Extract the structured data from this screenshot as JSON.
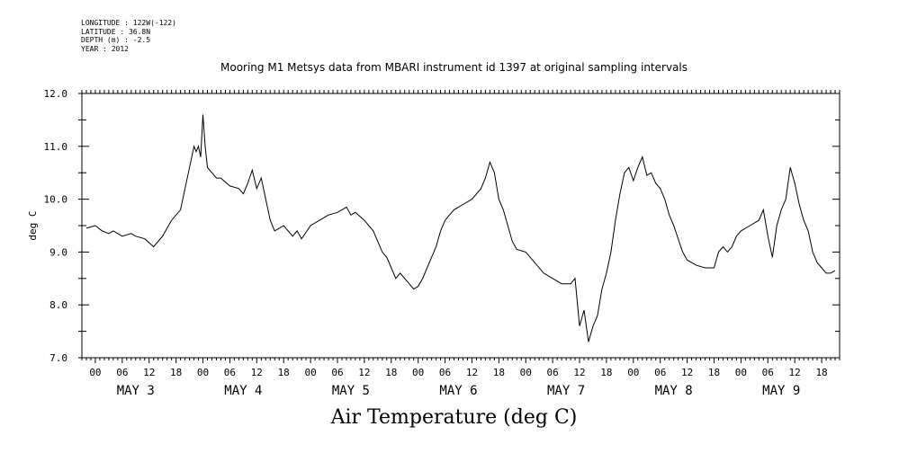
{
  "header": {
    "meta_lines": [
      "LONGITUDE : 122W(-122)",
      "LATITUDE : 36.8N",
      "DEPTH (m) : -2.5",
      "YEAR : 2012"
    ],
    "title": "Mooring M1 Metsys data from MBARI instrument id 1397 at original sampling intervals"
  },
  "footer_title": "Air Temperature (deg C)",
  "chart_data": {
    "type": "line",
    "title": "Mooring M1 Metsys data from MBARI instrument id 1397 at original sampling intervals",
    "xlabel": "",
    "ylabel": "deg C",
    "ylim": [
      7.0,
      12.0
    ],
    "y_ticks": [
      "7.0",
      "8.0",
      "9.0",
      "10.0",
      "11.0",
      "12.0"
    ],
    "x_range_hours": [
      -3,
      166
    ],
    "x_hour_labels": [
      "00",
      "06",
      "12",
      "18"
    ],
    "x_day_labels": [
      "MAY 3",
      "MAY 4",
      "MAY 5",
      "MAY 6",
      "MAY 7",
      "MAY 8",
      "MAY 9"
    ],
    "series": [
      {
        "values": [
          [
            -2,
            9.45
          ],
          [
            0,
            9.5
          ],
          [
            1.5,
            9.4
          ],
          [
            3,
            9.35
          ],
          [
            4,
            9.4
          ],
          [
            6,
            9.3
          ],
          [
            8,
            9.35
          ],
          [
            9,
            9.3
          ],
          [
            11,
            9.25
          ],
          [
            13,
            9.1
          ],
          [
            15,
            9.3
          ],
          [
            17,
            9.6
          ],
          [
            19,
            9.8
          ],
          [
            20,
            10.2
          ],
          [
            21,
            10.6
          ],
          [
            22,
            11.0
          ],
          [
            22.5,
            10.9
          ],
          [
            23,
            11.0
          ],
          [
            23.5,
            10.8
          ],
          [
            24,
            11.6
          ],
          [
            24.5,
            11.0
          ],
          [
            25,
            10.6
          ],
          [
            26,
            10.5
          ],
          [
            27,
            10.4
          ],
          [
            28,
            10.4
          ],
          [
            30,
            10.25
          ],
          [
            32,
            10.2
          ],
          [
            33,
            10.1
          ],
          [
            34,
            10.3
          ],
          [
            35,
            10.55
          ],
          [
            36,
            10.2
          ],
          [
            37,
            10.4
          ],
          [
            38,
            10.0
          ],
          [
            39,
            9.6
          ],
          [
            40,
            9.4
          ],
          [
            42,
            9.5
          ],
          [
            44,
            9.3
          ],
          [
            45,
            9.4
          ],
          [
            46,
            9.25
          ],
          [
            48,
            9.5
          ],
          [
            50,
            9.6
          ],
          [
            52,
            9.7
          ],
          [
            54,
            9.75
          ],
          [
            55,
            9.8
          ],
          [
            56,
            9.85
          ],
          [
            57,
            9.7
          ],
          [
            58,
            9.75
          ],
          [
            60,
            9.6
          ],
          [
            62,
            9.4
          ],
          [
            64,
            9.0
          ],
          [
            65,
            8.9
          ],
          [
            66,
            8.7
          ],
          [
            67,
            8.5
          ],
          [
            68,
            8.6
          ],
          [
            70,
            8.4
          ],
          [
            71,
            8.3
          ],
          [
            72,
            8.35
          ],
          [
            73,
            8.5
          ],
          [
            74,
            8.7
          ],
          [
            75,
            8.9
          ],
          [
            76,
            9.1
          ],
          [
            77,
            9.4
          ],
          [
            78,
            9.6
          ],
          [
            79,
            9.7
          ],
          [
            80,
            9.8
          ],
          [
            82,
            9.9
          ],
          [
            84,
            10.0
          ],
          [
            86,
            10.2
          ],
          [
            87,
            10.4
          ],
          [
            88,
            10.7
          ],
          [
            89,
            10.5
          ],
          [
            90,
            10.0
          ],
          [
            91,
            9.8
          ],
          [
            92,
            9.5
          ],
          [
            93,
            9.2
          ],
          [
            94,
            9.05
          ],
          [
            96,
            9.0
          ],
          [
            98,
            8.8
          ],
          [
            100,
            8.6
          ],
          [
            102,
            8.5
          ],
          [
            104,
            8.4
          ],
          [
            106,
            8.4
          ],
          [
            107,
            8.5
          ],
          [
            108,
            7.6
          ],
          [
            109,
            7.9
          ],
          [
            110,
            7.3
          ],
          [
            111,
            7.6
          ],
          [
            112,
            7.8
          ],
          [
            113,
            8.3
          ],
          [
            114,
            8.6
          ],
          [
            115,
            9.0
          ],
          [
            116,
            9.6
          ],
          [
            117,
            10.1
          ],
          [
            118,
            10.5
          ],
          [
            119,
            10.6
          ],
          [
            120,
            10.35
          ],
          [
            121,
            10.6
          ],
          [
            122,
            10.8
          ],
          [
            123,
            10.45
          ],
          [
            124,
            10.5
          ],
          [
            125,
            10.3
          ],
          [
            126,
            10.2
          ],
          [
            127,
            10.0
          ],
          [
            128,
            9.7
          ],
          [
            129,
            9.5
          ],
          [
            130,
            9.25
          ],
          [
            131,
            9.0
          ],
          [
            132,
            8.85
          ],
          [
            134,
            8.75
          ],
          [
            136,
            8.7
          ],
          [
            138,
            8.7
          ],
          [
            139,
            9.0
          ],
          [
            140,
            9.1
          ],
          [
            141,
            9.0
          ],
          [
            142,
            9.1
          ],
          [
            143,
            9.3
          ],
          [
            144,
            9.4
          ],
          [
            146,
            9.5
          ],
          [
            148,
            9.6
          ],
          [
            149,
            9.8
          ],
          [
            150,
            9.3
          ],
          [
            151,
            8.9
          ],
          [
            152,
            9.5
          ],
          [
            153,
            9.8
          ],
          [
            154,
            10.0
          ],
          [
            155,
            10.6
          ],
          [
            156,
            10.3
          ],
          [
            157,
            9.9
          ],
          [
            158,
            9.6
          ],
          [
            159,
            9.4
          ],
          [
            160,
            9.0
          ],
          [
            161,
            8.8
          ],
          [
            162,
            8.7
          ],
          [
            163,
            8.6
          ],
          [
            164,
            8.6
          ],
          [
            165,
            8.65
          ]
        ]
      }
    ],
    "grid": false,
    "legend": "none"
  }
}
